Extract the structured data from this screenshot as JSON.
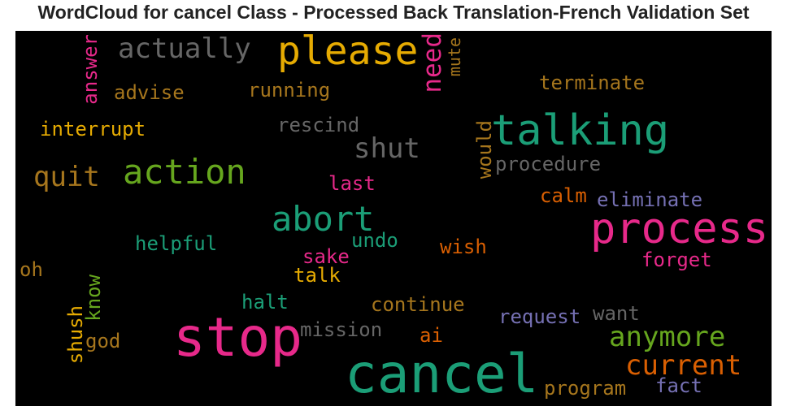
{
  "title": "WordCloud for cancel Class - Processed Back Translation-French Validation Set",
  "words": [
    {
      "text": "actually",
      "color": "#666666"
    },
    {
      "text": "please",
      "color": "#e6ab02"
    },
    {
      "text": "answer",
      "color": "#e7298a"
    },
    {
      "text": "need",
      "color": "#e7298a"
    },
    {
      "text": "mute",
      "color": "#a6761d"
    },
    {
      "text": "advise",
      "color": "#a6761d"
    },
    {
      "text": "running",
      "color": "#a6761d"
    },
    {
      "text": "terminate",
      "color": "#a6761d"
    },
    {
      "text": "interrupt",
      "color": "#e6ab02"
    },
    {
      "text": "rescind",
      "color": "#666666"
    },
    {
      "text": "talking",
      "color": "#1b9e77"
    },
    {
      "text": "shut",
      "color": "#666666"
    },
    {
      "text": "would",
      "color": "#a6761d"
    },
    {
      "text": "quit",
      "color": "#a6761d"
    },
    {
      "text": "action",
      "color": "#66a61e"
    },
    {
      "text": "procedure",
      "color": "#666666"
    },
    {
      "text": "last",
      "color": "#e7298a"
    },
    {
      "text": "calm",
      "color": "#d95f02"
    },
    {
      "text": "eliminate",
      "color": "#7570b3"
    },
    {
      "text": "abort",
      "color": "#1b9e77"
    },
    {
      "text": "process",
      "color": "#e7298a"
    },
    {
      "text": "helpful",
      "color": "#1b9e77"
    },
    {
      "text": "undo",
      "color": "#1b9e77"
    },
    {
      "text": "wish",
      "color": "#d95f02"
    },
    {
      "text": "forget",
      "color": "#e7298a"
    },
    {
      "text": "oh",
      "color": "#a6761d"
    },
    {
      "text": "sake",
      "color": "#e7298a"
    },
    {
      "text": "talk",
      "color": "#e6ab02"
    },
    {
      "text": "know",
      "color": "#66a61e"
    },
    {
      "text": "halt",
      "color": "#1b9e77"
    },
    {
      "text": "continue",
      "color": "#a6761d"
    },
    {
      "text": "want",
      "color": "#666666"
    },
    {
      "text": "request",
      "color": "#7570b3"
    },
    {
      "text": "shush",
      "color": "#e6ab02"
    },
    {
      "text": "god",
      "color": "#a6761d"
    },
    {
      "text": "stop",
      "color": "#e7298a"
    },
    {
      "text": "mission",
      "color": "#666666"
    },
    {
      "text": "ai",
      "color": "#d95f02"
    },
    {
      "text": "anymore",
      "color": "#66a61e"
    },
    {
      "text": "current",
      "color": "#d95f02"
    },
    {
      "text": "cancel",
      "color": "#1b9e77"
    },
    {
      "text": "program",
      "color": "#a6761d"
    },
    {
      "text": "fact",
      "color": "#7570b3"
    }
  ]
}
